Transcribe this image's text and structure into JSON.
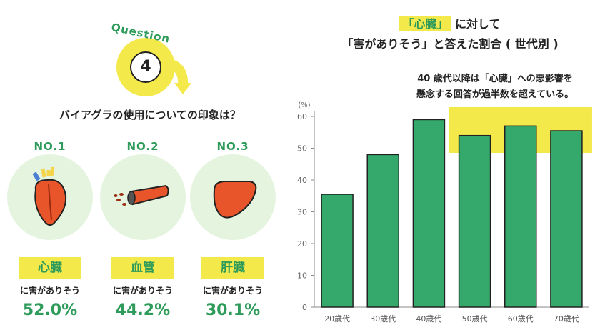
{
  "question_badge": {
    "word": "Question",
    "number": "4"
  },
  "question_text": "バイアグラの使用についての印象は？",
  "ranking": [
    {
      "rank": "NO.1",
      "organ": "心臓",
      "harm": "に害がありそう",
      "percent": "52.0%",
      "icon": "heart-icon"
    },
    {
      "rank": "NO.2",
      "organ": "血管",
      "harm": "に害がありそう",
      "percent": "44.2%",
      "icon": "blood-vessel-icon"
    },
    {
      "rank": "NO.3",
      "organ": "肝臓",
      "harm": "に害がありそう",
      "percent": "30.1%",
      "icon": "liver-icon"
    }
  ],
  "chart_title": {
    "highlight": "「心臓」",
    "line1_rest": "に対して",
    "line2": "「害がありそう」と答えた割合 ( 世代別 )"
  },
  "chart_note": {
    "line1": "40 歳代以降は「心臓」への悪影響を",
    "line2": "懸念する回答が過半数を超えている。"
  },
  "colors": {
    "green": "#2e9b5a",
    "bar": "#35a96b",
    "yellow": "#f3e94a",
    "light_green": "#e4f4df"
  },
  "chart_data": {
    "type": "bar",
    "title": "「心臓」に対して「害がありそう」と答えた割合 ( 世代別 )",
    "categories": [
      "20歳代",
      "30歳代",
      "40歳代",
      "50歳代",
      "60歳代",
      "70歳代"
    ],
    "values": [
      35.5,
      48,
      59,
      54,
      57,
      55.5
    ],
    "ylabel": "(%)",
    "yticks": [
      0,
      10,
      20,
      30,
      40,
      50,
      60
    ],
    "ylim": [
      0,
      60
    ],
    "highlight_range": [
      3,
      6
    ],
    "grid": false
  }
}
